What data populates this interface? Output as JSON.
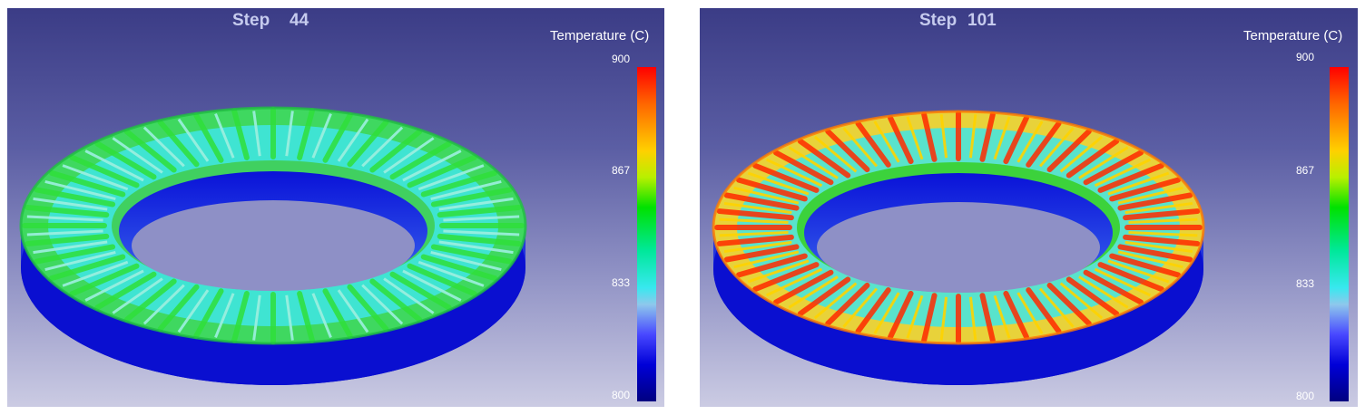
{
  "panels": [
    {
      "step_label": "Step",
      "step_value": "44",
      "legend": {
        "title": "Temperature (C)",
        "ticks": [
          "900",
          "867",
          "833",
          "800"
        ]
      }
    },
    {
      "step_label": "Step",
      "step_value": "101",
      "legend": {
        "title": "Temperature (C)",
        "ticks": [
          "900",
          "867",
          "833",
          "800"
        ]
      }
    }
  ],
  "colors": {
    "hot": "#ff2a00",
    "warm": "#ffd400",
    "mid": "#2fe03a",
    "cool": "#3fe6e6",
    "cold": "#0a10d8"
  }
}
